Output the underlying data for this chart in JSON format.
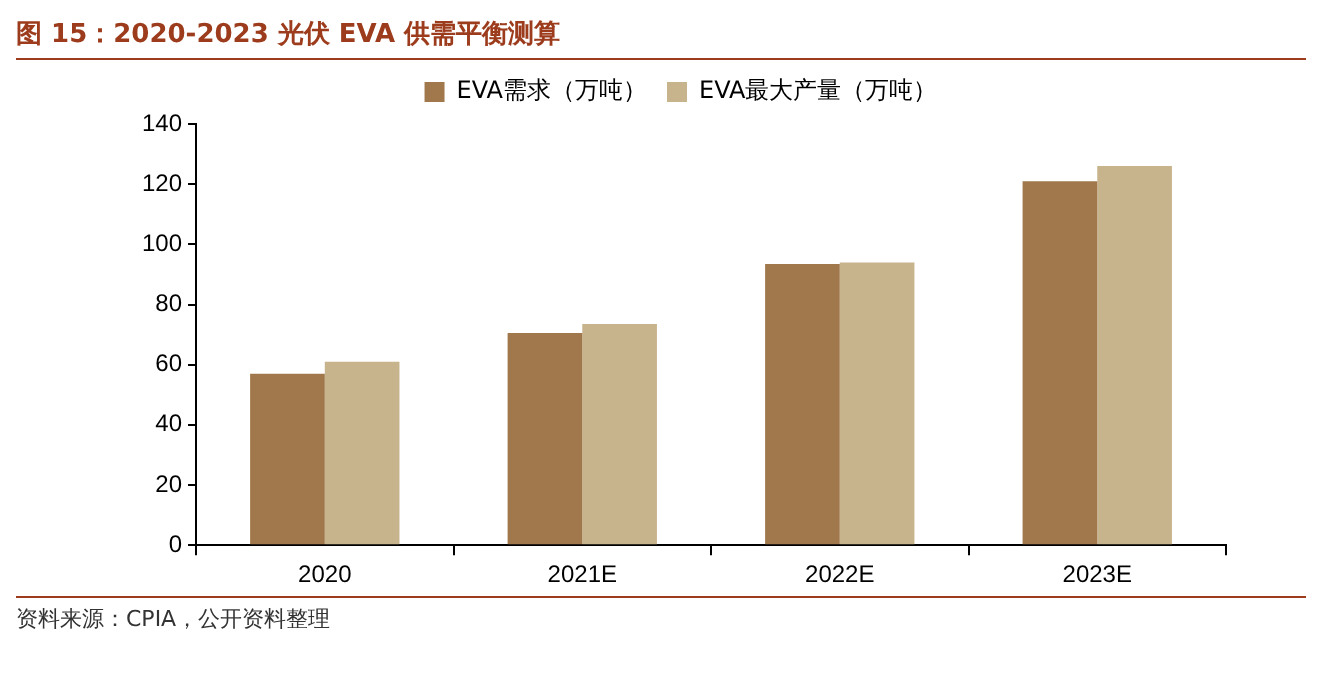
{
  "chart_data": {
    "type": "bar",
    "title": "图 15：2020-2023 光伏 EVA 供需平衡测算",
    "categories": [
      "2020",
      "2021E",
      "2022E",
      "2023E"
    ],
    "series": [
      {
        "name": "EVA需求（万吨）",
        "color": "#a0784c",
        "values": [
          57,
          70.5,
          93.5,
          121
        ]
      },
      {
        "name": "EVA最大产量（万吨）",
        "color": "#c8b48c",
        "values": [
          61,
          73.5,
          94,
          126
        ]
      }
    ],
    "ylim": [
      0,
      140
    ],
    "yticks": [
      0,
      20,
      40,
      60,
      80,
      100,
      120,
      140
    ],
    "grid": false,
    "legend": "top",
    "annotations": [
      "资料来源：CPIA，公开资料整理"
    ]
  }
}
